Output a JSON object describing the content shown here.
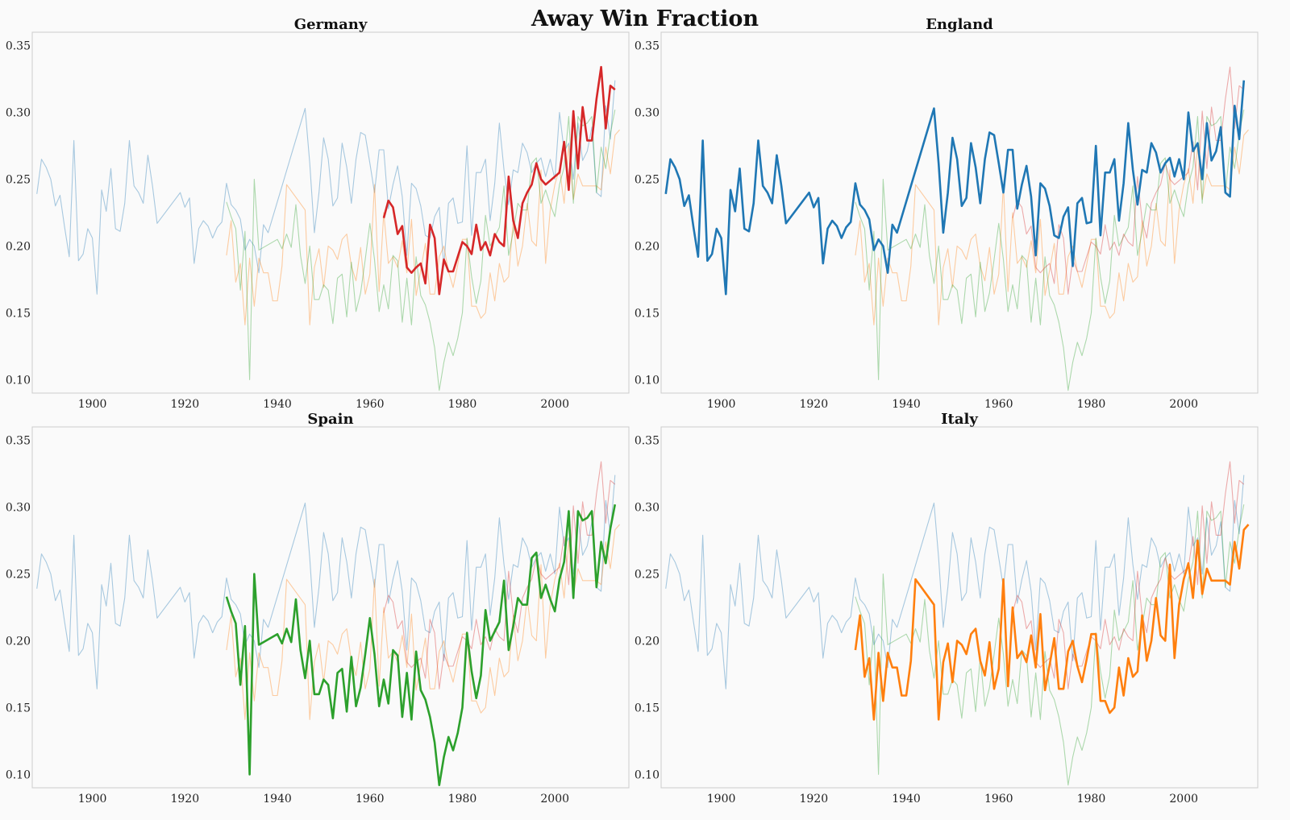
{
  "title": "Away Win Fraction",
  "colors": {
    "Germany": "#d62728",
    "England": "#1f77b4",
    "Spain": "#2ca02c",
    "Italy": "#ff7f0e",
    "background": "#fafafa",
    "frame": "#cccccc"
  },
  "chart_data": [
    {
      "type": "line",
      "title": "Germany",
      "highlight": "Germany",
      "xlim": [
        1887,
        2016
      ],
      "ylim": [
        0.09,
        0.36
      ],
      "xticks": [
        "1900",
        "1920",
        "1940",
        "1960",
        "1980",
        "2000"
      ],
      "yticks": [
        "0.10",
        "0.15",
        "0.20",
        "0.25",
        "0.30",
        "0.35"
      ],
      "grid": false
    },
    {
      "type": "line",
      "title": "England",
      "highlight": "England",
      "xlim": [
        1887,
        2016
      ],
      "ylim": [
        0.09,
        0.36
      ],
      "xticks": [
        "1900",
        "1920",
        "1940",
        "1960",
        "1980",
        "2000"
      ],
      "yticks": [
        "0.10",
        "0.15",
        "0.20",
        "0.25",
        "0.30",
        "0.35"
      ],
      "grid": false
    },
    {
      "type": "line",
      "title": "Spain",
      "highlight": "Spain",
      "xlim": [
        1887,
        2016
      ],
      "ylim": [
        0.09,
        0.36
      ],
      "xticks": [
        "1900",
        "1920",
        "1940",
        "1960",
        "1980",
        "2000"
      ],
      "yticks": [
        "0.10",
        "0.15",
        "0.20",
        "0.25",
        "0.30",
        "0.35"
      ],
      "grid": false
    },
    {
      "type": "line",
      "title": "Italy",
      "highlight": "Italy",
      "xlim": [
        1887,
        2016
      ],
      "ylim": [
        0.09,
        0.36
      ],
      "xticks": [
        "1900",
        "1920",
        "1940",
        "1960",
        "1980",
        "2000"
      ],
      "yticks": [
        "0.10",
        "0.15",
        "0.20",
        "0.25",
        "0.30",
        "0.35"
      ],
      "grid": false
    }
  ],
  "series": {
    "England": [
      [
        1888,
        0.239
      ],
      [
        1889,
        0.265
      ],
      [
        1890,
        0.259
      ],
      [
        1891,
        0.25
      ],
      [
        1892,
        0.23
      ],
      [
        1893,
        0.238
      ],
      [
        1894,
        0.214
      ],
      [
        1895,
        0.192
      ],
      [
        1896,
        0.279
      ],
      [
        1897,
        0.189
      ],
      [
        1898,
        0.194
      ],
      [
        1899,
        0.213
      ],
      [
        1900,
        0.206
      ],
      [
        1901,
        0.164
      ],
      [
        1902,
        0.242
      ],
      [
        1903,
        0.226
      ],
      [
        1904,
        0.258
      ],
      [
        1905,
        0.213
      ],
      [
        1906,
        0.211
      ],
      [
        1907,
        0.232
      ],
      [
        1908,
        0.279
      ],
      [
        1909,
        0.245
      ],
      [
        1910,
        0.24
      ],
      [
        1911,
        0.232
      ],
      [
        1912,
        0.268
      ],
      [
        1913,
        0.245
      ],
      [
        1914,
        0.217
      ],
      [
        1919,
        0.24
      ],
      [
        1920,
        0.229
      ],
      [
        1921,
        0.236
      ],
      [
        1922,
        0.187
      ],
      [
        1923,
        0.213
      ],
      [
        1924,
        0.219
      ],
      [
        1925,
        0.215
      ],
      [
        1926,
        0.206
      ],
      [
        1927,
        0.214
      ],
      [
        1928,
        0.218
      ],
      [
        1929,
        0.247
      ],
      [
        1930,
        0.231
      ],
      [
        1931,
        0.227
      ],
      [
        1932,
        0.22
      ],
      [
        1933,
        0.197
      ],
      [
        1934,
        0.205
      ],
      [
        1935,
        0.2
      ],
      [
        1936,
        0.18
      ],
      [
        1937,
        0.216
      ],
      [
        1938,
        0.21
      ],
      [
        1946,
        0.303
      ],
      [
        1947,
        0.262
      ],
      [
        1948,
        0.21
      ],
      [
        1949,
        0.24
      ],
      [
        1950,
        0.281
      ],
      [
        1951,
        0.265
      ],
      [
        1952,
        0.23
      ],
      [
        1953,
        0.236
      ],
      [
        1954,
        0.277
      ],
      [
        1955,
        0.259
      ],
      [
        1956,
        0.232
      ],
      [
        1957,
        0.265
      ],
      [
        1958,
        0.285
      ],
      [
        1959,
        0.283
      ],
      [
        1960,
        0.262
      ],
      [
        1961,
        0.24
      ],
      [
        1962,
        0.272
      ],
      [
        1963,
        0.272
      ],
      [
        1964,
        0.228
      ],
      [
        1965,
        0.246
      ],
      [
        1966,
        0.26
      ],
      [
        1967,
        0.237
      ],
      [
        1968,
        0.193
      ],
      [
        1969,
        0.247
      ],
      [
        1970,
        0.243
      ],
      [
        1971,
        0.23
      ],
      [
        1972,
        0.208
      ],
      [
        1973,
        0.206
      ],
      [
        1974,
        0.222
      ],
      [
        1975,
        0.229
      ],
      [
        1976,
        0.185
      ],
      [
        1977,
        0.232
      ],
      [
        1978,
        0.236
      ],
      [
        1979,
        0.217
      ],
      [
        1980,
        0.218
      ],
      [
        1981,
        0.275
      ],
      [
        1982,
        0.208
      ],
      [
        1983,
        0.255
      ],
      [
        1984,
        0.255
      ],
      [
        1985,
        0.265
      ],
      [
        1986,
        0.219
      ],
      [
        1987,
        0.247
      ],
      [
        1988,
        0.292
      ],
      [
        1989,
        0.257
      ],
      [
        1990,
        0.231
      ],
      [
        1991,
        0.257
      ],
      [
        1992,
        0.255
      ],
      [
        1993,
        0.277
      ],
      [
        1994,
        0.27
      ],
      [
        1995,
        0.255
      ],
      [
        1996,
        0.262
      ],
      [
        1997,
        0.266
      ],
      [
        1998,
        0.252
      ],
      [
        1999,
        0.265
      ],
      [
        2000,
        0.25
      ],
      [
        2001,
        0.3
      ],
      [
        2002,
        0.271
      ],
      [
        2003,
        0.277
      ],
      [
        2004,
        0.25
      ],
      [
        2005,
        0.292
      ],
      [
        2006,
        0.264
      ],
      [
        2007,
        0.271
      ],
      [
        2008,
        0.289
      ],
      [
        2009,
        0.24
      ],
      [
        2010,
        0.237
      ],
      [
        2011,
        0.305
      ],
      [
        2012,
        0.28
      ],
      [
        2013,
        0.324
      ]
    ],
    "Germany": [
      [
        1963,
        0.221
      ],
      [
        1964,
        0.234
      ],
      [
        1965,
        0.229
      ],
      [
        1966,
        0.209
      ],
      [
        1967,
        0.215
      ],
      [
        1968,
        0.184
      ],
      [
        1969,
        0.18
      ],
      [
        1970,
        0.184
      ],
      [
        1971,
        0.187
      ],
      [
        1972,
        0.172
      ],
      [
        1973,
        0.216
      ],
      [
        1974,
        0.206
      ],
      [
        1975,
        0.164
      ],
      [
        1976,
        0.19
      ],
      [
        1977,
        0.181
      ],
      [
        1978,
        0.181
      ],
      [
        1979,
        0.192
      ],
      [
        1980,
        0.203
      ],
      [
        1981,
        0.2
      ],
      [
        1982,
        0.194
      ],
      [
        1983,
        0.216
      ],
      [
        1984,
        0.197
      ],
      [
        1985,
        0.203
      ],
      [
        1986,
        0.193
      ],
      [
        1987,
        0.209
      ],
      [
        1988,
        0.203
      ],
      [
        1989,
        0.2
      ],
      [
        1990,
        0.252
      ],
      [
        1991,
        0.219
      ],
      [
        1992,
        0.206
      ],
      [
        1993,
        0.232
      ],
      [
        1994,
        0.24
      ],
      [
        1995,
        0.246
      ],
      [
        1996,
        0.262
      ],
      [
        1997,
        0.25
      ],
      [
        1998,
        0.246
      ],
      [
        1999,
        0.249
      ],
      [
        2000,
        0.252
      ],
      [
        2001,
        0.255
      ],
      [
        2002,
        0.278
      ],
      [
        2003,
        0.242
      ],
      [
        2004,
        0.301
      ],
      [
        2005,
        0.258
      ],
      [
        2006,
        0.304
      ],
      [
        2007,
        0.279
      ],
      [
        2008,
        0.279
      ],
      [
        2009,
        0.31
      ],
      [
        2010,
        0.334
      ],
      [
        2011,
        0.288
      ],
      [
        2012,
        0.32
      ],
      [
        2013,
        0.317
      ]
    ],
    "Spain": [
      [
        1929,
        0.233
      ],
      [
        1930,
        0.222
      ],
      [
        1931,
        0.213
      ],
      [
        1932,
        0.167
      ],
      [
        1933,
        0.211
      ],
      [
        1934,
        0.1
      ],
      [
        1935,
        0.25
      ],
      [
        1936,
        0.197
      ],
      [
        1940,
        0.205
      ],
      [
        1941,
        0.198
      ],
      [
        1942,
        0.209
      ],
      [
        1943,
        0.199
      ],
      [
        1944,
        0.231
      ],
      [
        1945,
        0.193
      ],
      [
        1946,
        0.172
      ],
      [
        1947,
        0.2
      ],
      [
        1948,
        0.16
      ],
      [
        1949,
        0.16
      ],
      [
        1950,
        0.171
      ],
      [
        1951,
        0.167
      ],
      [
        1952,
        0.142
      ],
      [
        1953,
        0.176
      ],
      [
        1954,
        0.179
      ],
      [
        1955,
        0.147
      ],
      [
        1956,
        0.188
      ],
      [
        1957,
        0.151
      ],
      [
        1958,
        0.165
      ],
      [
        1959,
        0.19
      ],
      [
        1960,
        0.217
      ],
      [
        1961,
        0.19
      ],
      [
        1962,
        0.151
      ],
      [
        1963,
        0.171
      ],
      [
        1964,
        0.153
      ],
      [
        1965,
        0.193
      ],
      [
        1966,
        0.189
      ],
      [
        1967,
        0.143
      ],
      [
        1968,
        0.176
      ],
      [
        1969,
        0.141
      ],
      [
        1970,
        0.192
      ],
      [
        1971,
        0.163
      ],
      [
        1972,
        0.156
      ],
      [
        1973,
        0.143
      ],
      [
        1974,
        0.124
      ],
      [
        1975,
        0.092
      ],
      [
        1976,
        0.113
      ],
      [
        1977,
        0.128
      ],
      [
        1978,
        0.118
      ],
      [
        1979,
        0.131
      ],
      [
        1980,
        0.15
      ],
      [
        1981,
        0.206
      ],
      [
        1982,
        0.177
      ],
      [
        1983,
        0.157
      ],
      [
        1984,
        0.174
      ],
      [
        1985,
        0.223
      ],
      [
        1986,
        0.2
      ],
      [
        1987,
        0.207
      ],
      [
        1988,
        0.214
      ],
      [
        1989,
        0.245
      ],
      [
        1990,
        0.193
      ],
      [
        1991,
        0.211
      ],
      [
        1992,
        0.232
      ],
      [
        1993,
        0.227
      ],
      [
        1994,
        0.227
      ],
      [
        1995,
        0.262
      ],
      [
        1996,
        0.266
      ],
      [
        1997,
        0.232
      ],
      [
        1998,
        0.242
      ],
      [
        1999,
        0.231
      ],
      [
        2000,
        0.222
      ],
      [
        2001,
        0.246
      ],
      [
        2002,
        0.259
      ],
      [
        2003,
        0.297
      ],
      [
        2004,
        0.232
      ],
      [
        2005,
        0.297
      ],
      [
        2006,
        0.29
      ],
      [
        2007,
        0.292
      ],
      [
        2008,
        0.297
      ],
      [
        2009,
        0.24
      ],
      [
        2010,
        0.274
      ],
      [
        2011,
        0.258
      ],
      [
        2012,
        0.284
      ],
      [
        2013,
        0.302
      ]
    ],
    "Italy": [
      [
        1929,
        0.193
      ],
      [
        1930,
        0.219
      ],
      [
        1931,
        0.173
      ],
      [
        1932,
        0.187
      ],
      [
        1933,
        0.141
      ],
      [
        1934,
        0.191
      ],
      [
        1935,
        0.155
      ],
      [
        1936,
        0.191
      ],
      [
        1937,
        0.18
      ],
      [
        1938,
        0.18
      ],
      [
        1939,
        0.159
      ],
      [
        1940,
        0.159
      ],
      [
        1941,
        0.185
      ],
      [
        1942,
        0.246
      ],
      [
        1946,
        0.227
      ],
      [
        1947,
        0.141
      ],
      [
        1948,
        0.184
      ],
      [
        1949,
        0.198
      ],
      [
        1950,
        0.169
      ],
      [
        1951,
        0.2
      ],
      [
        1952,
        0.197
      ],
      [
        1953,
        0.19
      ],
      [
        1954,
        0.205
      ],
      [
        1955,
        0.209
      ],
      [
        1956,
        0.185
      ],
      [
        1957,
        0.174
      ],
      [
        1958,
        0.199
      ],
      [
        1959,
        0.164
      ],
      [
        1960,
        0.179
      ],
      [
        1961,
        0.246
      ],
      [
        1962,
        0.166
      ],
      [
        1963,
        0.225
      ],
      [
        1964,
        0.187
      ],
      [
        1965,
        0.192
      ],
      [
        1966,
        0.184
      ],
      [
        1967,
        0.204
      ],
      [
        1968,
        0.18
      ],
      [
        1969,
        0.22
      ],
      [
        1970,
        0.163
      ],
      [
        1971,
        0.182
      ],
      [
        1972,
        0.202
      ],
      [
        1973,
        0.164
      ],
      [
        1974,
        0.164
      ],
      [
        1975,
        0.192
      ],
      [
        1976,
        0.2
      ],
      [
        1977,
        0.181
      ],
      [
        1978,
        0.169
      ],
      [
        1979,
        0.186
      ],
      [
        1980,
        0.205
      ],
      [
        1981,
        0.205
      ],
      [
        1982,
        0.155
      ],
      [
        1983,
        0.155
      ],
      [
        1984,
        0.146
      ],
      [
        1985,
        0.15
      ],
      [
        1986,
        0.18
      ],
      [
        1987,
        0.159
      ],
      [
        1988,
        0.187
      ],
      [
        1989,
        0.173
      ],
      [
        1990,
        0.177
      ],
      [
        1991,
        0.219
      ],
      [
        1992,
        0.185
      ],
      [
        1993,
        0.2
      ],
      [
        1994,
        0.232
      ],
      [
        1995,
        0.204
      ],
      [
        1996,
        0.2
      ],
      [
        1997,
        0.257
      ],
      [
        1998,
        0.187
      ],
      [
        1999,
        0.227
      ],
      [
        2000,
        0.246
      ],
      [
        2001,
        0.258
      ],
      [
        2002,
        0.232
      ],
      [
        2003,
        0.275
      ],
      [
        2004,
        0.235
      ],
      [
        2005,
        0.254
      ],
      [
        2006,
        0.245
      ],
      [
        2007,
        0.245
      ],
      [
        2008,
        0.245
      ],
      [
        2009,
        0.245
      ],
      [
        2010,
        0.242
      ],
      [
        2011,
        0.274
      ],
      [
        2012,
        0.254
      ],
      [
        2013,
        0.283
      ],
      [
        2014,
        0.287
      ]
    ]
  }
}
